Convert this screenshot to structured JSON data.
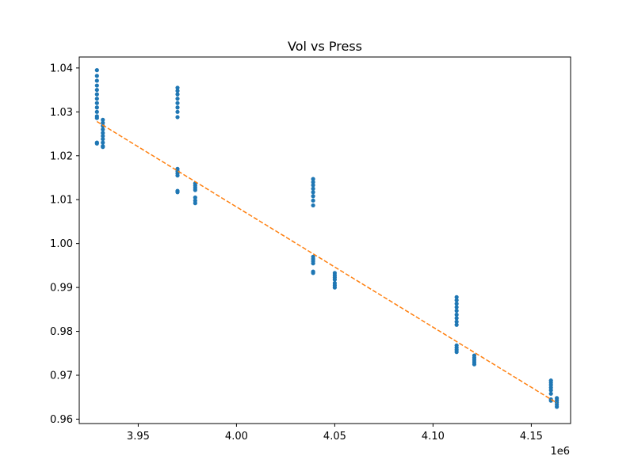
{
  "chart_data": {
    "type": "scatter",
    "title": "Vol vs Press",
    "xlabel": "",
    "ylabel": "",
    "x_offset_label": "1e6",
    "xlim": [
      3920000,
      4170000
    ],
    "ylim": [
      0.959,
      1.0425
    ],
    "x_ticks": [
      3950000,
      4000000,
      4050000,
      4100000,
      4150000
    ],
    "x_tick_labels": [
      "3.95",
      "4.00",
      "4.05",
      "4.10",
      "4.15"
    ],
    "y_ticks": [
      0.96,
      0.97,
      0.98,
      0.99,
      1.0,
      1.01,
      1.02,
      1.03,
      1.04
    ],
    "y_tick_labels": [
      "0.96",
      "0.97",
      "0.98",
      "0.99",
      "1.00",
      "1.01",
      "1.02",
      "1.03",
      "1.04"
    ],
    "grid": false,
    "colors": {
      "points": "#1f77b4",
      "fit": "#ff7f0e"
    },
    "series": [
      {
        "kind": "points",
        "points": [
          [
            3929000,
            1.0395
          ],
          [
            3929000,
            1.0382
          ],
          [
            3929000,
            1.0371
          ],
          [
            3929000,
            1.036
          ],
          [
            3929000,
            1.035
          ],
          [
            3929000,
            1.034
          ],
          [
            3929000,
            1.033
          ],
          [
            3929000,
            1.032
          ],
          [
            3929000,
            1.031
          ],
          [
            3929000,
            1.03
          ],
          [
            3929000,
            1.029
          ],
          [
            3929000,
            1.0286
          ],
          [
            3929000,
            1.023
          ],
          [
            3929000,
            1.0228
          ],
          [
            3932000,
            1.0282
          ],
          [
            3932000,
            1.0275
          ],
          [
            3932000,
            1.0268
          ],
          [
            3932000,
            1.026
          ],
          [
            3932000,
            1.0252
          ],
          [
            3932000,
            1.0245
          ],
          [
            3932000,
            1.0238
          ],
          [
            3932000,
            1.023
          ],
          [
            3932000,
            1.0222
          ],
          [
            3932000,
            1.022
          ],
          [
            3970000,
            1.0355
          ],
          [
            3970000,
            1.0348
          ],
          [
            3970000,
            1.034
          ],
          [
            3970000,
            1.033
          ],
          [
            3970000,
            1.032
          ],
          [
            3970000,
            1.031
          ],
          [
            3970000,
            1.03
          ],
          [
            3970000,
            1.0288
          ],
          [
            3970000,
            1.017
          ],
          [
            3970000,
            1.0165
          ],
          [
            3970000,
            1.016
          ],
          [
            3970000,
            1.0155
          ],
          [
            3970000,
            1.012
          ],
          [
            3970000,
            1.0117
          ],
          [
            3979000,
            1.0137
          ],
          [
            3979000,
            1.0132
          ],
          [
            3979000,
            1.0127
          ],
          [
            3979000,
            1.0122
          ],
          [
            3979000,
            1.0105
          ],
          [
            3979000,
            1.0098
          ],
          [
            3979000,
            1.0092
          ],
          [
            4039000,
            1.0147
          ],
          [
            4039000,
            1.014
          ],
          [
            4039000,
            1.0133
          ],
          [
            4039000,
            1.0125
          ],
          [
            4039000,
            1.0117
          ],
          [
            4039000,
            1.0108
          ],
          [
            4039000,
            1.0098
          ],
          [
            4039000,
            1.0087
          ],
          [
            4039000,
            0.997
          ],
          [
            4039000,
            0.9965
          ],
          [
            4039000,
            0.996
          ],
          [
            4039000,
            0.9955
          ],
          [
            4039000,
            0.9936
          ],
          [
            4039000,
            0.9933
          ],
          [
            4050000,
            0.9933
          ],
          [
            4050000,
            0.9928
          ],
          [
            4050000,
            0.9923
          ],
          [
            4050000,
            0.9918
          ],
          [
            4050000,
            0.991
          ],
          [
            4050000,
            0.9905
          ],
          [
            4050000,
            0.99
          ],
          [
            4112000,
            0.9878
          ],
          [
            4112000,
            0.9871
          ],
          [
            4112000,
            0.9863
          ],
          [
            4112000,
            0.9855
          ],
          [
            4112000,
            0.9847
          ],
          [
            4112000,
            0.9838
          ],
          [
            4112000,
            0.983
          ],
          [
            4112000,
            0.9822
          ],
          [
            4112000,
            0.9815
          ],
          [
            4112000,
            0.9768
          ],
          [
            4112000,
            0.9763
          ],
          [
            4112000,
            0.9758
          ],
          [
            4112000,
            0.9753
          ],
          [
            4121000,
            0.9745
          ],
          [
            4121000,
            0.974
          ],
          [
            4121000,
            0.9735
          ],
          [
            4121000,
            0.973
          ],
          [
            4121000,
            0.9725
          ],
          [
            4160000,
            0.9688
          ],
          [
            4160000,
            0.9683
          ],
          [
            4160000,
            0.9678
          ],
          [
            4160000,
            0.9672
          ],
          [
            4160000,
            0.9666
          ],
          [
            4160000,
            0.9658
          ],
          [
            4160000,
            0.9645
          ],
          [
            4160000,
            0.9642
          ],
          [
            4163000,
            0.9648
          ],
          [
            4163000,
            0.9643
          ],
          [
            4163000,
            0.9638
          ],
          [
            4163000,
            0.9633
          ],
          [
            4163000,
            0.9628
          ]
        ]
      },
      {
        "kind": "fit-line",
        "style": "dashed",
        "points": [
          [
            3929000,
            1.0278
          ],
          [
            4163000,
            0.9637
          ]
        ]
      }
    ]
  }
}
